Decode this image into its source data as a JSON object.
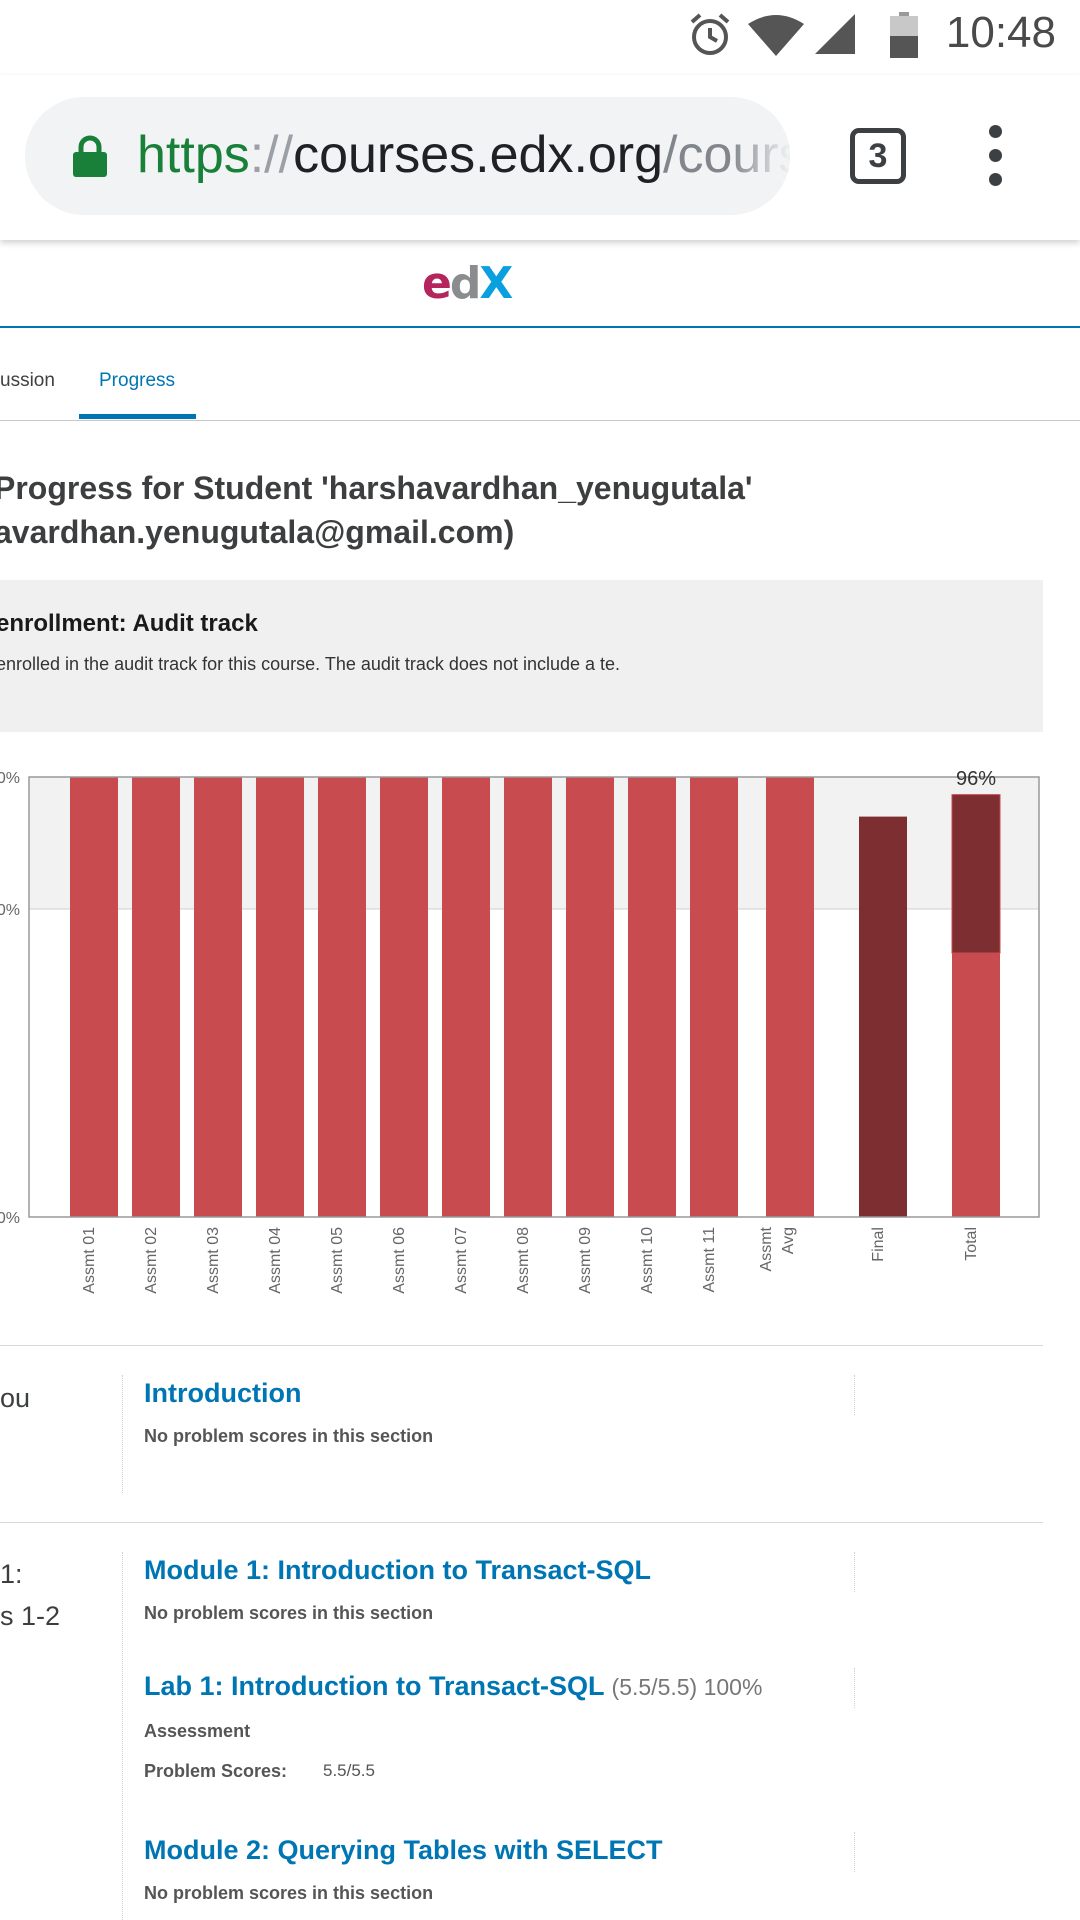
{
  "status_bar": {
    "time": "10:48",
    "icons": [
      "alarm-icon",
      "wifi-icon",
      "signal-icon",
      "battery-icon"
    ]
  },
  "browser": {
    "url_scheme": "https",
    "url_sep": "://",
    "url_host": "courses.edx.org",
    "url_path": "/cours",
    "tab_count": "3",
    "colors": {
      "scheme": "#188038",
      "lock": "#188038"
    }
  },
  "header": {
    "logo": {
      "e": "e",
      "d": "d",
      "x": "X"
    }
  },
  "course_nav": {
    "tab_partial": "ussion",
    "tab_active": "Progress"
  },
  "page": {
    "title_line1": " Progress for Student 'harshavardhan_yenugutala'",
    "title_line2": "avardhan.yenugutala@gmail.com)"
  },
  "enrollment": {
    "heading": "enrollment: Audit track",
    "body": "enrolled in the audit track for this course. The audit track does not include a te."
  },
  "chart_data": {
    "type": "bar",
    "categories": [
      "Assmt 01",
      "Assmt 02",
      "Assmt 03",
      "Assmt 04",
      "Assmt 05",
      "Assmt 06",
      "Assmt 07",
      "Assmt 08",
      "Assmt 09",
      "Assmt 10",
      "Assmt 11",
      "Assmt Avg",
      "Final",
      "Total"
    ],
    "category_lines": [
      [
        "Assmt 01"
      ],
      [
        "Assmt 02"
      ],
      [
        "Assmt 03"
      ],
      [
        "Assmt 04"
      ],
      [
        "Assmt 05"
      ],
      [
        "Assmt 06"
      ],
      [
        "Assmt 07"
      ],
      [
        "Assmt 08"
      ],
      [
        "Assmt 09"
      ],
      [
        "Assmt 10"
      ],
      [
        "Assmt 11"
      ],
      [
        "Assmt",
        "Avg"
      ],
      [
        "Final"
      ],
      [
        "Total"
      ]
    ],
    "values": [
      100,
      100,
      100,
      100,
      100,
      100,
      100,
      100,
      100,
      100,
      100,
      100,
      91,
      96
    ],
    "total_breakdown": {
      "assessments": 60,
      "final": 36
    },
    "y_ticks": [
      {
        "value": 100,
        "label": "0%"
      },
      {
        "value": 70,
        "label": "0%"
      },
      {
        "value": 0,
        "label": "0%"
      }
    ],
    "grade_cutoff": 70,
    "ylim": [
      0,
      100
    ],
    "annotation": "96%",
    "colors": {
      "assessment": "#c84b4f",
      "final": "#7d2e31",
      "band": "#f2f2f2"
    }
  },
  "sections": [
    {
      "chapter": [
        "ou"
      ],
      "items": [
        {
          "title": "Introduction",
          "score": "",
          "note": "No problem scores in this section"
        }
      ]
    },
    {
      "chapter": [
        "1:",
        "s 1-2"
      ],
      "items": [
        {
          "title": "Module 1: Introduction to Transact-SQL",
          "score": "",
          "note": "No problem scores in this section"
        },
        {
          "title": "Lab 1: Introduction to Transact-SQL",
          "score": "(5.5/5.5) 100%",
          "label": "Assessment",
          "scores_label": "Problem Scores:",
          "scores_value": "5.5/5.5"
        },
        {
          "title": "Module 2: Querying Tables with SELECT",
          "score": "",
          "note": "No problem scores in this section"
        }
      ]
    }
  ]
}
